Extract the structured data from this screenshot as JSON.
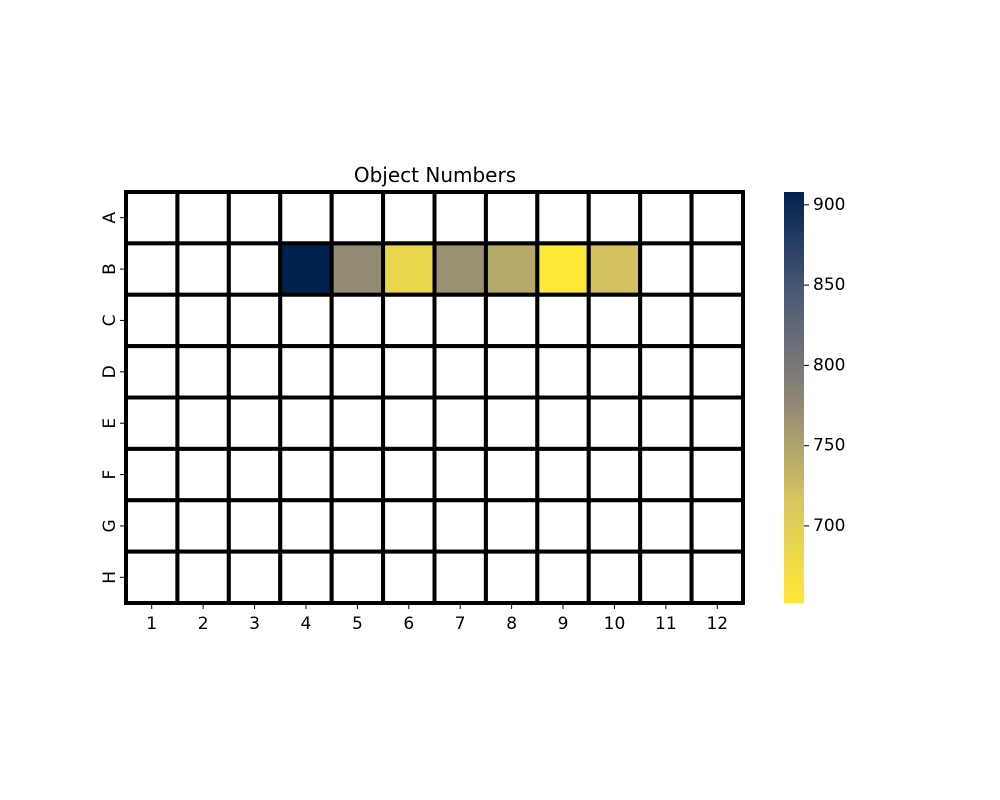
{
  "chart_data": {
    "type": "heatmap",
    "title": "Object Numbers",
    "xlabel": "",
    "ylabel": "",
    "rows": [
      "A",
      "B",
      "C",
      "D",
      "E",
      "F",
      "G",
      "H"
    ],
    "columns": [
      "1",
      "2",
      "3",
      "4",
      "5",
      "6",
      "7",
      "8",
      "9",
      "10",
      "11",
      "12"
    ],
    "values": [
      [
        null,
        null,
        null,
        null,
        null,
        null,
        null,
        null,
        null,
        null,
        null,
        null
      ],
      [
        null,
        null,
        null,
        908,
        774,
        685,
        767,
        744,
        652,
        719,
        null,
        null
      ],
      [
        null,
        null,
        null,
        null,
        null,
        null,
        null,
        null,
        null,
        null,
        null,
        null
      ],
      [
        null,
        null,
        null,
        null,
        null,
        null,
        null,
        null,
        null,
        null,
        null,
        null
      ],
      [
        null,
        null,
        null,
        null,
        null,
        null,
        null,
        null,
        null,
        null,
        null,
        null
      ],
      [
        null,
        null,
        null,
        null,
        null,
        null,
        null,
        null,
        null,
        null,
        null,
        null
      ],
      [
        null,
        null,
        null,
        null,
        null,
        null,
        null,
        null,
        null,
        null,
        null,
        null
      ],
      [
        null,
        null,
        null,
        null,
        null,
        null,
        null,
        null,
        null,
        null,
        null,
        null
      ]
    ],
    "colormap": "cividis_r",
    "missing_color": "#ffffff",
    "cell_border_color": "#000000",
    "colorbar": {
      "range": [
        652,
        908
      ],
      "ticks": [
        700,
        750,
        800,
        850,
        900
      ],
      "tick_labels": [
        "700",
        "750",
        "800",
        "850",
        "900"
      ]
    }
  }
}
